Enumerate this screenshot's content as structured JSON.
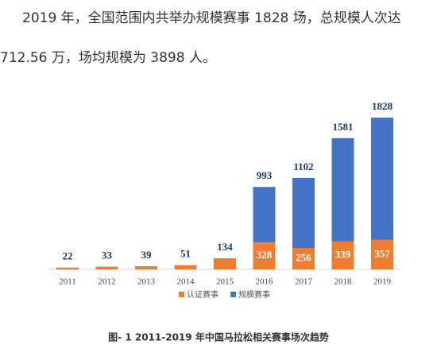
{
  "paragraph": [
    "2019 年，全国范围内共举办规模赛事 1828 场，总规模人次达",
    "712.56 万，场均规模为 3898 人。"
  ],
  "chart_data": {
    "type": "bar",
    "overlap": true,
    "categories": [
      "2011",
      "2012",
      "2013",
      "2014",
      "2015",
      "2016",
      "2017",
      "2018",
      "2019"
    ],
    "series": [
      {
        "name": "认证赛事",
        "color": "#ed7d31",
        "values": [
          22,
          33,
          39,
          51,
          134,
          328,
          256,
          339,
          357
        ]
      },
      {
        "name": "规模赛事",
        "color": "#4472c4",
        "values": [
          null,
          null,
          null,
          null,
          null,
          993,
          1102,
          1581,
          1828
        ]
      }
    ]
  },
  "caption": "图- 1 2011-2019 年中国马拉松相关赛事场次趋势"
}
